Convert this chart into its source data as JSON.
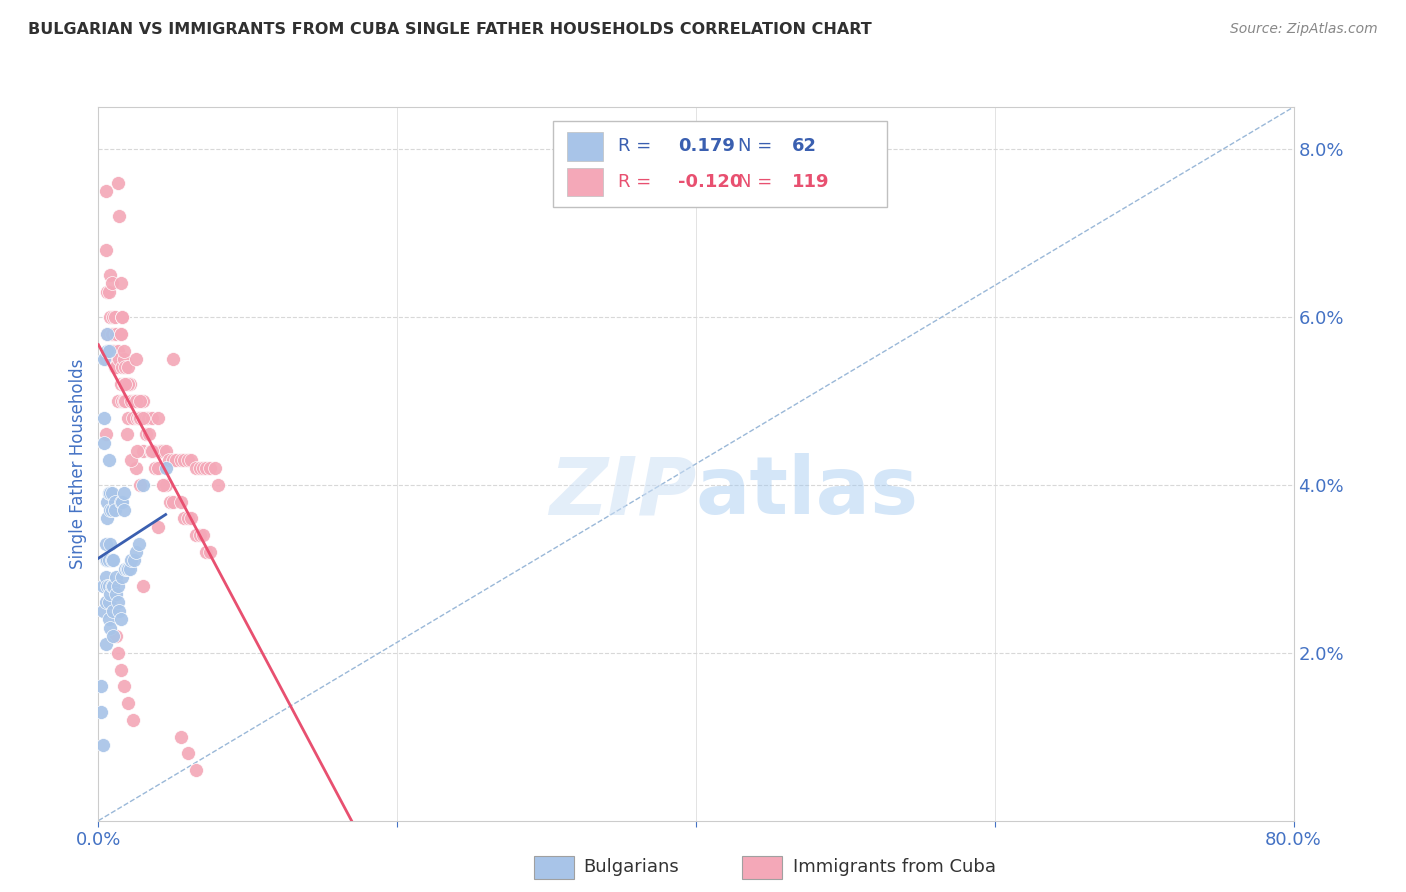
{
  "title": "BULGARIAN VS IMMIGRANTS FROM CUBA SINGLE FATHER HOUSEHOLDS CORRELATION CHART",
  "source": "Source: ZipAtlas.com",
  "ylabel": "Single Father Households",
  "right_yticks": [
    "2.0%",
    "4.0%",
    "6.0%",
    "8.0%"
  ],
  "right_ytick_vals": [
    0.02,
    0.04,
    0.06,
    0.08
  ],
  "legend_blue_R": "0.179",
  "legend_blue_N": "62",
  "legend_pink_R": "-0.120",
  "legend_pink_N": "119",
  "blue_color": "#a8c4e8",
  "pink_color": "#f4a8b8",
  "blue_line_color": "#3a5fb0",
  "pink_line_color": "#e85070",
  "diag_line_color": "#9ab8d8",
  "watermark": "ZIPatlas",
  "background_color": "#ffffff",
  "grid_color": "#d8d8d8",
  "title_color": "#303030",
  "source_color": "#888888",
  "axis_label_color": "#4472c4",
  "tick_label_color": "#4472c4",
  "xlim": [
    0.0,
    0.8
  ],
  "ylim": [
    0.0,
    0.085
  ],
  "blue_scatter_x": [
    0.002,
    0.003,
    0.003,
    0.003,
    0.004,
    0.004,
    0.004,
    0.005,
    0.005,
    0.005,
    0.005,
    0.005,
    0.006,
    0.006,
    0.006,
    0.006,
    0.006,
    0.006,
    0.007,
    0.007,
    0.007,
    0.007,
    0.007,
    0.007,
    0.007,
    0.008,
    0.008,
    0.008,
    0.008,
    0.008,
    0.009,
    0.009,
    0.009,
    0.009,
    0.01,
    0.01,
    0.01,
    0.01,
    0.011,
    0.011,
    0.012,
    0.012,
    0.013,
    0.013,
    0.014,
    0.015,
    0.015,
    0.016,
    0.016,
    0.017,
    0.017,
    0.018,
    0.019,
    0.02,
    0.021,
    0.022,
    0.024,
    0.025,
    0.027,
    0.03,
    0.045,
    0.002
  ],
  "blue_scatter_y": [
    0.013,
    0.028,
    0.025,
    0.009,
    0.055,
    0.048,
    0.045,
    0.033,
    0.031,
    0.029,
    0.026,
    0.021,
    0.058,
    0.056,
    0.038,
    0.036,
    0.031,
    0.028,
    0.056,
    0.043,
    0.039,
    0.031,
    0.028,
    0.026,
    0.024,
    0.039,
    0.037,
    0.033,
    0.027,
    0.023,
    0.039,
    0.037,
    0.031,
    0.028,
    0.031,
    0.028,
    0.025,
    0.022,
    0.038,
    0.037,
    0.029,
    0.027,
    0.028,
    0.026,
    0.025,
    0.038,
    0.024,
    0.038,
    0.029,
    0.039,
    0.037,
    0.03,
    0.03,
    0.03,
    0.03,
    0.031,
    0.031,
    0.032,
    0.033,
    0.04,
    0.042,
    0.016
  ],
  "pink_scatter_x": [
    0.005,
    0.005,
    0.005,
    0.005,
    0.006,
    0.006,
    0.007,
    0.007,
    0.008,
    0.008,
    0.008,
    0.009,
    0.009,
    0.01,
    0.01,
    0.011,
    0.011,
    0.012,
    0.012,
    0.013,
    0.013,
    0.014,
    0.015,
    0.015,
    0.016,
    0.016,
    0.017,
    0.017,
    0.018,
    0.018,
    0.019,
    0.02,
    0.02,
    0.021,
    0.022,
    0.023,
    0.024,
    0.025,
    0.025,
    0.026,
    0.027,
    0.028,
    0.03,
    0.03,
    0.032,
    0.033,
    0.035,
    0.036,
    0.038,
    0.04,
    0.041,
    0.042,
    0.043,
    0.045,
    0.047,
    0.05,
    0.052,
    0.055,
    0.057,
    0.06,
    0.062,
    0.065,
    0.068,
    0.07,
    0.072,
    0.075,
    0.078,
    0.08,
    0.015,
    0.016,
    0.017,
    0.018,
    0.02,
    0.025,
    0.025,
    0.028,
    0.03,
    0.032,
    0.034,
    0.035,
    0.036,
    0.038,
    0.04,
    0.043,
    0.045,
    0.048,
    0.05,
    0.055,
    0.057,
    0.06,
    0.062,
    0.065,
    0.068,
    0.07,
    0.072,
    0.075,
    0.05,
    0.043,
    0.013,
    0.014,
    0.015,
    0.016,
    0.017,
    0.018,
    0.019,
    0.022,
    0.026,
    0.028,
    0.012,
    0.013,
    0.015,
    0.017,
    0.02,
    0.023,
    0.055,
    0.06,
    0.065,
    0.04,
    0.03
  ],
  "pink_scatter_y": [
    0.075,
    0.068,
    0.055,
    0.046,
    0.063,
    0.058,
    0.063,
    0.056,
    0.065,
    0.06,
    0.055,
    0.064,
    0.058,
    0.06,
    0.056,
    0.06,
    0.054,
    0.058,
    0.054,
    0.056,
    0.05,
    0.055,
    0.058,
    0.052,
    0.054,
    0.05,
    0.055,
    0.05,
    0.054,
    0.05,
    0.052,
    0.054,
    0.048,
    0.052,
    0.05,
    0.048,
    0.05,
    0.05,
    0.042,
    0.048,
    0.048,
    0.048,
    0.05,
    0.044,
    0.048,
    0.048,
    0.044,
    0.048,
    0.044,
    0.048,
    0.044,
    0.044,
    0.044,
    0.044,
    0.043,
    0.043,
    0.043,
    0.043,
    0.043,
    0.043,
    0.043,
    0.042,
    0.042,
    0.042,
    0.042,
    0.042,
    0.042,
    0.04,
    0.058,
    0.06,
    0.052,
    0.052,
    0.052,
    0.055,
    0.05,
    0.05,
    0.048,
    0.046,
    0.046,
    0.044,
    0.044,
    0.042,
    0.042,
    0.04,
    0.04,
    0.038,
    0.038,
    0.038,
    0.036,
    0.036,
    0.036,
    0.034,
    0.034,
    0.034,
    0.032,
    0.032,
    0.055,
    0.04,
    0.076,
    0.072,
    0.064,
    0.06,
    0.056,
    0.052,
    0.046,
    0.043,
    0.044,
    0.04,
    0.022,
    0.02,
    0.018,
    0.016,
    0.014,
    0.012,
    0.01,
    0.008,
    0.006,
    0.035,
    0.028
  ]
}
